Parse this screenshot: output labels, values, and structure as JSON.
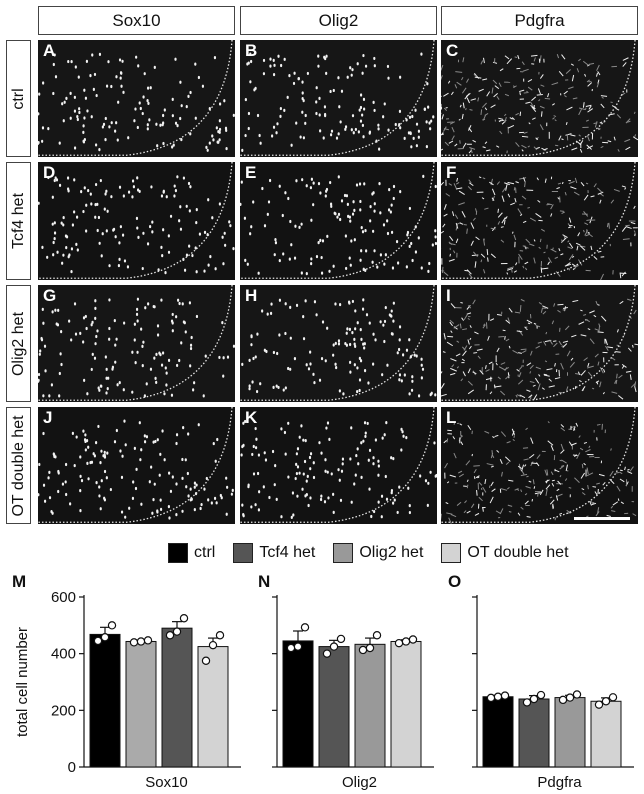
{
  "column_headers": [
    "Sox10",
    "Olig2",
    "Pdgfra"
  ],
  "row_headers": [
    "ctrl",
    "Tcf4 het",
    "Olig2 het",
    "OT double het"
  ],
  "panel_letters": [
    [
      "A",
      "B",
      "C"
    ],
    [
      "D",
      "E",
      "F"
    ],
    [
      "G",
      "H",
      "I"
    ],
    [
      "J",
      "K",
      "L"
    ]
  ],
  "legend": [
    {
      "label": "ctrl",
      "color": "#000000"
    },
    {
      "label": "Tcf4 het",
      "color": "#555555"
    },
    {
      "label": "Olig2 het",
      "color": "#999999"
    },
    {
      "label": "OT double het",
      "color": "#d3d3d3"
    }
  ],
  "chart_data": [
    {
      "type": "bar",
      "panel_label": "M",
      "title": "",
      "xlabel": "Sox10",
      "ylabel": "total cell number",
      "ylim": [
        0,
        600
      ],
      "yticks": [
        "0",
        "200",
        "400",
        "600"
      ],
      "bars": [
        {
          "value": 468,
          "err": 25,
          "color": "#000000",
          "points": [
            445,
            458,
            500
          ]
        },
        {
          "value": 443,
          "err": 5,
          "color": "#aaaaaa",
          "points": [
            440,
            443,
            447
          ]
        },
        {
          "value": 490,
          "err": 23,
          "color": "#555555",
          "points": [
            465,
            478,
            525
          ]
        },
        {
          "value": 425,
          "err": 30,
          "color": "#d3d3d3",
          "points": [
            375,
            430,
            465
          ]
        }
      ]
    },
    {
      "type": "bar",
      "panel_label": "N",
      "title": "",
      "xlabel": "Olig2",
      "ylabel": "",
      "ylim": [
        0,
        600
      ],
      "yticks": [],
      "bars": [
        {
          "value": 445,
          "err": 35,
          "color": "#000000",
          "points": [
            420,
            425,
            493
          ]
        },
        {
          "value": 425,
          "err": 22,
          "color": "#555555",
          "points": [
            400,
            425,
            452
          ]
        },
        {
          "value": 433,
          "err": 22,
          "color": "#999999",
          "points": [
            413,
            420,
            465
          ]
        },
        {
          "value": 443,
          "err": 6,
          "color": "#d3d3d3",
          "points": [
            437,
            443,
            450
          ]
        }
      ]
    },
    {
      "type": "bar",
      "panel_label": "O",
      "title": "",
      "xlabel": "Pdgfra",
      "ylabel": "",
      "ylim": [
        0,
        600
      ],
      "yticks": [],
      "bars": [
        {
          "value": 248,
          "err": 5,
          "color": "#000000",
          "points": [
            244,
            248,
            252
          ]
        },
        {
          "value": 240,
          "err": 12,
          "color": "#555555",
          "points": [
            228,
            240,
            254
          ]
        },
        {
          "value": 245,
          "err": 8,
          "color": "#999999",
          "points": [
            237,
            245,
            256
          ]
        },
        {
          "value": 232,
          "err": 12,
          "color": "#d3d3d3",
          "points": [
            220,
            232,
            246
          ]
        }
      ]
    }
  ]
}
